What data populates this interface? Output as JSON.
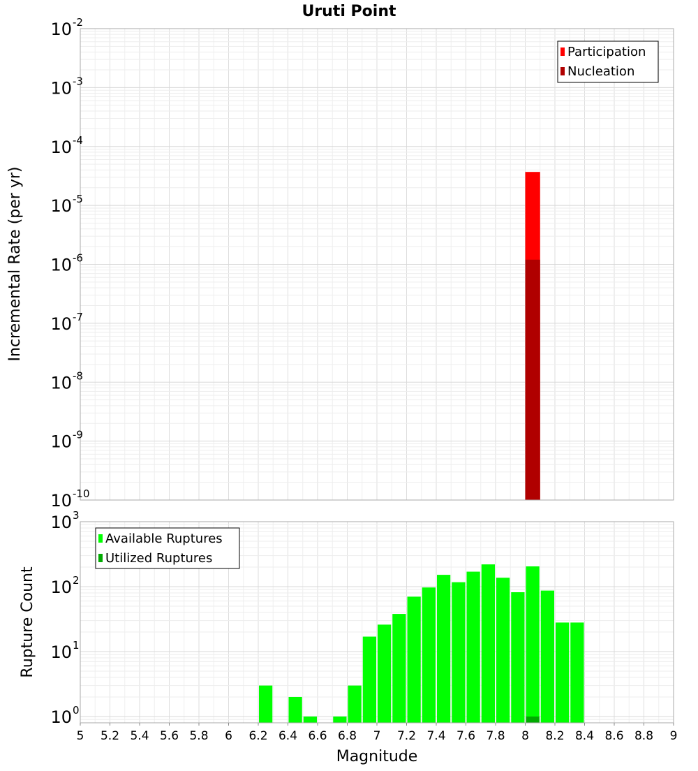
{
  "chart_data": [
    {
      "type": "bar",
      "title": "Uruti Point",
      "xlabel": "",
      "ylabel": "Incremental Rate (per yr)",
      "xlim": [
        5,
        9
      ],
      "ylim": [
        1e-10,
        0.01
      ],
      "yscale": "log",
      "grid": true,
      "legend_position": "top-right",
      "bin_width": 0.1,
      "y_tick_labels": [
        {
          "base": "10",
          "exp": "-2",
          "value": 0.01
        },
        {
          "base": "10",
          "exp": "-3",
          "value": 0.001
        },
        {
          "base": "10",
          "exp": "-4",
          "value": 0.0001
        },
        {
          "base": "10",
          "exp": "-5",
          "value": 1e-05
        },
        {
          "base": "10",
          "exp": "-6",
          "value": 1e-06
        },
        {
          "base": "10",
          "exp": "-7",
          "value": 1e-07
        },
        {
          "base": "10",
          "exp": "-8",
          "value": 1e-08
        },
        {
          "base": "10",
          "exp": "-9",
          "value": 1e-09
        },
        {
          "base": "10",
          "exp": "-10",
          "value": 1e-10
        }
      ],
      "series": [
        {
          "name": "Participation",
          "color": "#ff0000",
          "x": [
            8.05
          ],
          "values": [
            3.7e-05
          ]
        },
        {
          "name": "Nucleation",
          "color": "#b00000",
          "x": [
            8.05
          ],
          "values": [
            1.2e-06
          ]
        }
      ]
    },
    {
      "type": "bar",
      "title": "",
      "xlabel": "Magnitude",
      "ylabel": "Rupture Count",
      "xlim": [
        5,
        9
      ],
      "ylim": [
        0.8,
        1000
      ],
      "yscale": "log",
      "grid": true,
      "legend_position": "top-left",
      "bin_width": 0.1,
      "x_tick_labels": [
        "5",
        "5.2",
        "5.4",
        "5.6",
        "5.8",
        "6",
        "6.2",
        "6.4",
        "6.6",
        "6.8",
        "7",
        "7.2",
        "7.4",
        "7.6",
        "7.8",
        "8",
        "8.2",
        "8.4",
        "8.6",
        "8.8",
        "9"
      ],
      "y_tick_labels": [
        {
          "base": "10",
          "exp": "3",
          "value": 1000
        },
        {
          "base": "10",
          "exp": "2",
          "value": 100
        },
        {
          "base": "10",
          "exp": "1",
          "value": 10
        },
        {
          "base": "10",
          "exp": "0",
          "value": 1
        }
      ],
      "series": [
        {
          "name": "Available Ruptures",
          "color": "#00ff00",
          "x": [
            6.25,
            6.45,
            6.55,
            6.75,
            6.85,
            6.95,
            7.05,
            7.15,
            7.25,
            7.35,
            7.45,
            7.55,
            7.65,
            7.75,
            7.85,
            7.95,
            8.05,
            8.15,
            8.25,
            8.35
          ],
          "values": [
            3,
            2,
            1,
            1,
            3,
            17,
            26,
            38,
            70,
            97,
            152,
            117,
            170,
            220,
            137,
            82,
            205,
            87,
            28,
            28
          ]
        },
        {
          "name": "Utilized Ruptures",
          "color": "#00aa00",
          "x": [
            8.05
          ],
          "values": [
            1
          ]
        }
      ]
    }
  ]
}
